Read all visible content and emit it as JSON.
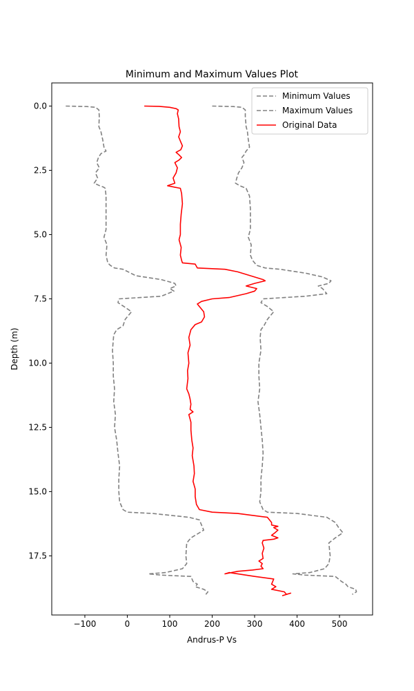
{
  "chart_data": {
    "type": "line",
    "title": "Minimum and Maximum Values Plot",
    "xlabel": "Andrus-P Vs",
    "ylabel": "Depth (m)",
    "xlim": [
      -178,
      578
    ],
    "ylim": [
      19.8,
      -0.9
    ],
    "y_inverted": true,
    "x_ticks": [
      -100,
      0,
      100,
      200,
      300,
      400,
      500
    ],
    "x_tick_labels": [
      "−100",
      "0",
      "100",
      "200",
      "300",
      "400",
      "500"
    ],
    "y_ticks": [
      0,
      2.5,
      5,
      7.5,
      10,
      12.5,
      15,
      17.5
    ],
    "y_tick_labels": [
      "0.0",
      "2.5",
      "5.0",
      "7.5",
      "10.0",
      "12.5",
      "15.0",
      "17.5"
    ],
    "legend_position": "top-right",
    "colors": {
      "min": "#808080",
      "max": "#808080",
      "original": "#ff0000"
    },
    "series": [
      {
        "name": "Minimum Values",
        "style": "dashed",
        "points": [
          [
            -145,
            0
          ],
          [
            -95,
            0.02
          ],
          [
            -75,
            0.05
          ],
          [
            -67,
            0.15
          ],
          [
            -66,
            0.4
          ],
          [
            -67,
            0.8
          ],
          [
            -62,
            1.0
          ],
          [
            -58,
            1.3
          ],
          [
            -55,
            1.6
          ],
          [
            -50,
            1.75
          ],
          [
            -62,
            1.85
          ],
          [
            -68,
            2.0
          ],
          [
            -72,
            2.2
          ],
          [
            -66,
            2.4
          ],
          [
            -75,
            2.6
          ],
          [
            -70,
            2.8
          ],
          [
            -78,
            3.0
          ],
          [
            -65,
            3.1
          ],
          [
            -56,
            3.15
          ],
          [
            -52,
            3.2
          ],
          [
            -50,
            3.5
          ],
          [
            -50,
            4.0
          ],
          [
            -50,
            4.5
          ],
          [
            -50,
            4.8
          ],
          [
            -55,
            5.1
          ],
          [
            -48,
            5.4
          ],
          [
            -50,
            5.8
          ],
          [
            -46,
            6.1
          ],
          [
            -40,
            6.2
          ],
          [
            -30,
            6.3
          ],
          [
            -10,
            6.35
          ],
          [
            20,
            6.6
          ],
          [
            80,
            6.75
          ],
          [
            112,
            6.9
          ],
          [
            115,
            7.0
          ],
          [
            100,
            7.1
          ],
          [
            110,
            7.2
          ],
          [
            80,
            7.4
          ],
          [
            -20,
            7.5
          ],
          [
            -22,
            7.65
          ],
          [
            -8,
            7.8
          ],
          [
            10,
            8.0
          ],
          [
            -5,
            8.3
          ],
          [
            -10,
            8.55
          ],
          [
            -25,
            8.7
          ],
          [
            -32,
            8.9
          ],
          [
            -35,
            9.5
          ],
          [
            -33,
            10.0
          ],
          [
            -33,
            10.5
          ],
          [
            -30,
            11.0
          ],
          [
            -32,
            11.5
          ],
          [
            -28,
            12.0
          ],
          [
            -30,
            12.5
          ],
          [
            -25,
            13.0
          ],
          [
            -22,
            13.5
          ],
          [
            -18,
            14.0
          ],
          [
            -20,
            14.5
          ],
          [
            -20,
            15.0
          ],
          [
            -18,
            15.4
          ],
          [
            -10,
            15.7
          ],
          [
            0,
            15.8
          ],
          [
            60,
            15.85
          ],
          [
            145,
            16.0
          ],
          [
            170,
            16.1
          ],
          [
            175,
            16.3
          ],
          [
            180,
            16.5
          ],
          [
            170,
            16.6
          ],
          [
            150,
            16.8
          ],
          [
            140,
            17.0
          ],
          [
            138,
            17.5
          ],
          [
            140,
            17.8
          ],
          [
            130,
            18.0
          ],
          [
            90,
            18.15
          ],
          [
            50,
            18.2
          ],
          [
            80,
            18.25
          ],
          [
            150,
            18.3
          ],
          [
            155,
            18.5
          ],
          [
            165,
            18.6
          ],
          [
            160,
            18.7
          ],
          [
            180,
            18.8
          ],
          [
            190,
            18.9
          ],
          [
            185,
            19.0
          ]
        ]
      },
      {
        "name": "Maximum Values",
        "style": "dashed",
        "points": [
          [
            200,
            0
          ],
          [
            250,
            0.02
          ],
          [
            270,
            0.05
          ],
          [
            278,
            0.15
          ],
          [
            278,
            0.4
          ],
          [
            280,
            0.8
          ],
          [
            283,
            1.0
          ],
          [
            285,
            1.3
          ],
          [
            288,
            1.6
          ],
          [
            280,
            1.75
          ],
          [
            275,
            1.9
          ],
          [
            270,
            2.0
          ],
          [
            275,
            2.2
          ],
          [
            270,
            2.4
          ],
          [
            262,
            2.6
          ],
          [
            258,
            2.8
          ],
          [
            255,
            3.0
          ],
          [
            265,
            3.1
          ],
          [
            280,
            3.2
          ],
          [
            288,
            3.5
          ],
          [
            290,
            4.0
          ],
          [
            290,
            4.5
          ],
          [
            290,
            4.8
          ],
          [
            285,
            5.1
          ],
          [
            292,
            5.4
          ],
          [
            290,
            5.8
          ],
          [
            295,
            6.0
          ],
          [
            300,
            6.1
          ],
          [
            305,
            6.2
          ],
          [
            325,
            6.3
          ],
          [
            360,
            6.35
          ],
          [
            420,
            6.5
          ],
          [
            460,
            6.65
          ],
          [
            480,
            6.8
          ],
          [
            475,
            6.9
          ],
          [
            450,
            7.0
          ],
          [
            460,
            7.1
          ],
          [
            470,
            7.3
          ],
          [
            420,
            7.4
          ],
          [
            320,
            7.5
          ],
          [
            315,
            7.65
          ],
          [
            330,
            7.8
          ],
          [
            345,
            8.0
          ],
          [
            330,
            8.3
          ],
          [
            322,
            8.55
          ],
          [
            315,
            8.7
          ],
          [
            313,
            9.0
          ],
          [
            315,
            9.5
          ],
          [
            310,
            10.0
          ],
          [
            310,
            10.5
          ],
          [
            312,
            11.0
          ],
          [
            308,
            11.5
          ],
          [
            312,
            12.0
          ],
          [
            315,
            12.5
          ],
          [
            318,
            13.0
          ],
          [
            320,
            13.5
          ],
          [
            318,
            14.0
          ],
          [
            315,
            14.5
          ],
          [
            315,
            15.0
          ],
          [
            312,
            15.4
          ],
          [
            320,
            15.7
          ],
          [
            330,
            15.8
          ],
          [
            400,
            15.85
          ],
          [
            470,
            16.0
          ],
          [
            490,
            16.2
          ],
          [
            498,
            16.4
          ],
          [
            508,
            16.6
          ],
          [
            490,
            16.8
          ],
          [
            475,
            17.0
          ],
          [
            478,
            17.5
          ],
          [
            475,
            17.8
          ],
          [
            465,
            18.0
          ],
          [
            430,
            18.15
          ],
          [
            390,
            18.2
          ],
          [
            420,
            18.25
          ],
          [
            490,
            18.3
          ],
          [
            505,
            18.5
          ],
          [
            515,
            18.6
          ],
          [
            520,
            18.7
          ],
          [
            538,
            18.8
          ],
          [
            540,
            18.9
          ],
          [
            530,
            19.0
          ]
        ]
      },
      {
        "name": "Original Data",
        "style": "solid",
        "points": [
          [
            40,
            0
          ],
          [
            75,
            0.01
          ],
          [
            100,
            0.05
          ],
          [
            115,
            0.1
          ],
          [
            120,
            0.15
          ],
          [
            118,
            0.3
          ],
          [
            121,
            0.5
          ],
          [
            122,
            0.8
          ],
          [
            125,
            1.0
          ],
          [
            121,
            1.2
          ],
          [
            126,
            1.4
          ],
          [
            130,
            1.55
          ],
          [
            126,
            1.7
          ],
          [
            115,
            1.8
          ],
          [
            122,
            1.9
          ],
          [
            128,
            2.0
          ],
          [
            122,
            2.1
          ],
          [
            112,
            2.2
          ],
          [
            118,
            2.4
          ],
          [
            115,
            2.6
          ],
          [
            108,
            2.8
          ],
          [
            112,
            3.0
          ],
          [
            95,
            3.1
          ],
          [
            110,
            3.15
          ],
          [
            125,
            3.2
          ],
          [
            128,
            3.4
          ],
          [
            130,
            3.8
          ],
          [
            127,
            4.2
          ],
          [
            125,
            4.6
          ],
          [
            125,
            5.0
          ],
          [
            122,
            5.2
          ],
          [
            127,
            5.5
          ],
          [
            125,
            5.8
          ],
          [
            128,
            6.0
          ],
          [
            130,
            6.1
          ],
          [
            160,
            6.15
          ],
          [
            165,
            6.3
          ],
          [
            230,
            6.35
          ],
          [
            260,
            6.45
          ],
          [
            290,
            6.6
          ],
          [
            320,
            6.75
          ],
          [
            325,
            6.8
          ],
          [
            300,
            6.9
          ],
          [
            280,
            7.0
          ],
          [
            305,
            7.1
          ],
          [
            300,
            7.2
          ],
          [
            280,
            7.3
          ],
          [
            240,
            7.45
          ],
          [
            200,
            7.5
          ],
          [
            175,
            7.6
          ],
          [
            165,
            7.7
          ],
          [
            170,
            7.8
          ],
          [
            180,
            8.0
          ],
          [
            182,
            8.2
          ],
          [
            175,
            8.4
          ],
          [
            160,
            8.5
          ],
          [
            150,
            8.7
          ],
          [
            145,
            9.0
          ],
          [
            148,
            9.3
          ],
          [
            143,
            9.6
          ],
          [
            145,
            10.0
          ],
          [
            142,
            10.3
          ],
          [
            143,
            10.6
          ],
          [
            140,
            11.0
          ],
          [
            145,
            11.2
          ],
          [
            148,
            11.4
          ],
          [
            150,
            11.6
          ],
          [
            148,
            11.8
          ],
          [
            155,
            11.9
          ],
          [
            145,
            12.0
          ],
          [
            150,
            12.3
          ],
          [
            150,
            12.6
          ],
          [
            152,
            13.0
          ],
          [
            155,
            13.3
          ],
          [
            153,
            13.6
          ],
          [
            157,
            14.0
          ],
          [
            158,
            14.3
          ],
          [
            155,
            14.6
          ],
          [
            160,
            14.9
          ],
          [
            160,
            15.2
          ],
          [
            163,
            15.5
          ],
          [
            170,
            15.7
          ],
          [
            200,
            15.8
          ],
          [
            260,
            15.85
          ],
          [
            330,
            16.0
          ],
          [
            340,
            16.2
          ],
          [
            340,
            16.3
          ],
          [
            355,
            16.35
          ],
          [
            345,
            16.4
          ],
          [
            355,
            16.5
          ],
          [
            348,
            16.6
          ],
          [
            340,
            16.7
          ],
          [
            355,
            16.8
          ],
          [
            345,
            16.85
          ],
          [
            320,
            16.9
          ],
          [
            318,
            17.0
          ],
          [
            322,
            17.2
          ],
          [
            318,
            17.4
          ],
          [
            320,
            17.6
          ],
          [
            310,
            17.7
          ],
          [
            318,
            17.8
          ],
          [
            315,
            17.9
          ],
          [
            320,
            18.0
          ],
          [
            295,
            18.05
          ],
          [
            260,
            18.1
          ],
          [
            230,
            18.2
          ],
          [
            240,
            18.15
          ],
          [
            300,
            18.3
          ],
          [
            345,
            18.4
          ],
          [
            340,
            18.6
          ],
          [
            350,
            18.7
          ],
          [
            340,
            18.8
          ],
          [
            370,
            18.9
          ],
          [
            375,
            19.0
          ],
          [
            385,
            18.95
          ],
          [
            365,
            19.05
          ]
        ]
      }
    ]
  }
}
